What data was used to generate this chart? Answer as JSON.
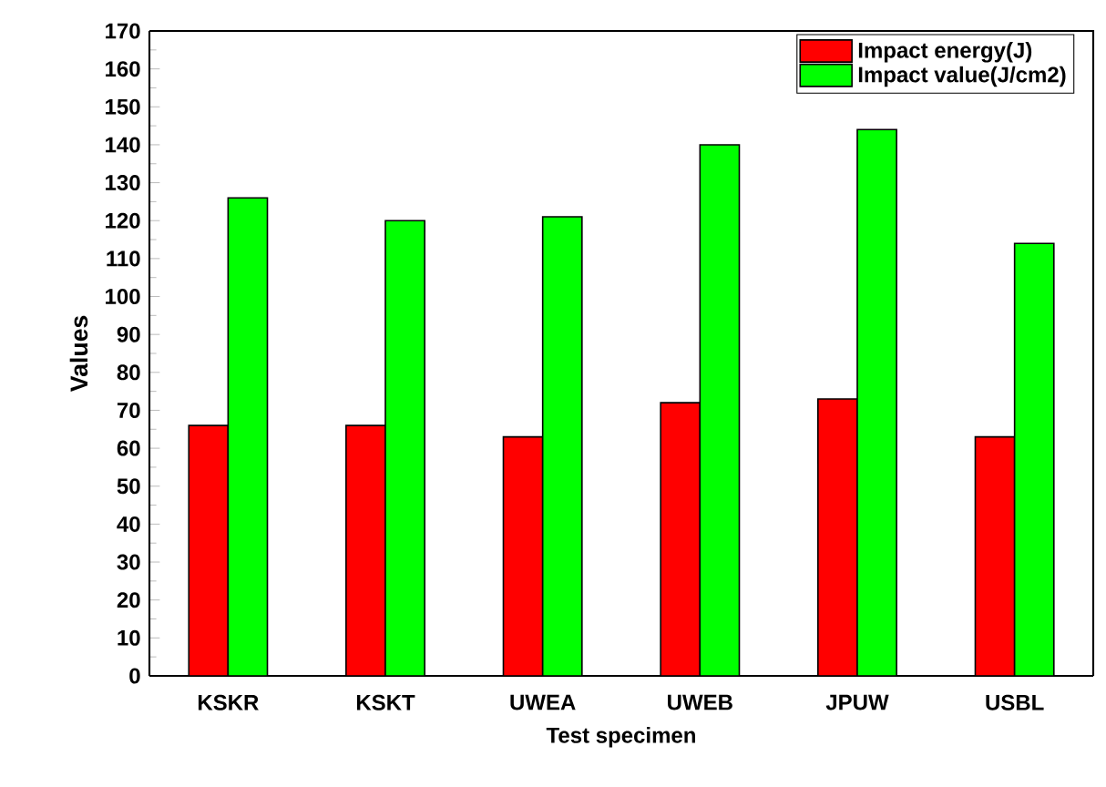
{
  "chart_data": {
    "type": "bar",
    "xlabel": "Test specimen",
    "ylabel": "Values",
    "categories": [
      "KSKR",
      "KSKT",
      "UWEA",
      "UWEB",
      "JPUW",
      "USBL"
    ],
    "series": [
      {
        "name": "Impact energy(J)",
        "color": "#ff0000",
        "values": [
          66,
          66,
          63,
          72,
          73,
          63
        ]
      },
      {
        "name": "Impact value(J/cm2)",
        "color": "#00ff00",
        "values": [
          126,
          120,
          121,
          140,
          144,
          114
        ]
      }
    ],
    "ylim": [
      0,
      170
    ],
    "yticks": [
      0,
      10,
      20,
      30,
      40,
      50,
      60,
      70,
      80,
      90,
      100,
      110,
      120,
      130,
      140,
      150,
      160,
      170
    ],
    "legend": "top right"
  }
}
